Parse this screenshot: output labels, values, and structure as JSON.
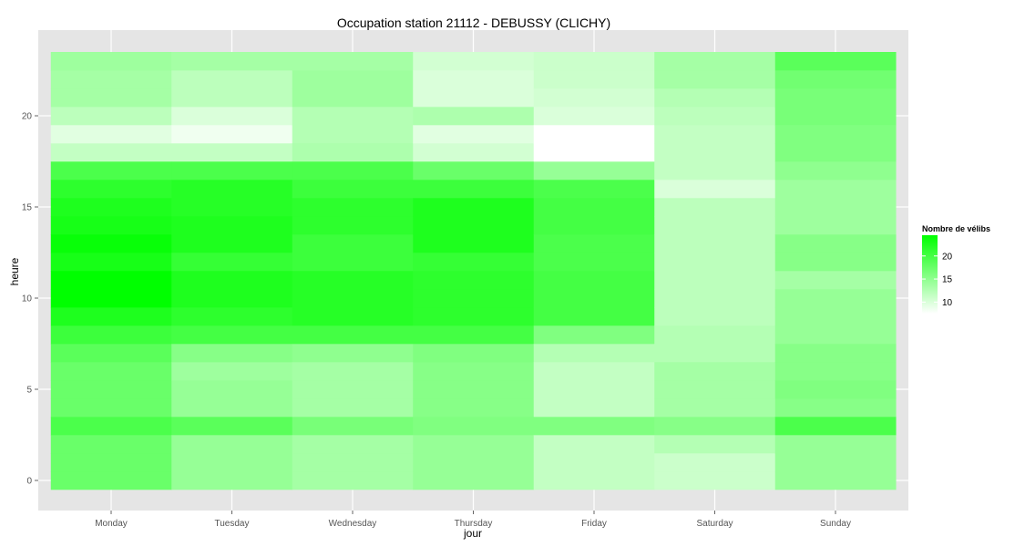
{
  "chart_data": {
    "type": "heatmap",
    "title": "Occupation station 21112 - DEBUSSY (CLICHY)",
    "xlabel": "jour",
    "ylabel": "heure",
    "x_categories": [
      "Monday",
      "Tuesday",
      "Wednesday",
      "Thursday",
      "Friday",
      "Saturday",
      "Sunday"
    ],
    "y_values": [
      0,
      1,
      2,
      3,
      4,
      5,
      6,
      7,
      8,
      9,
      10,
      11,
      12,
      13,
      14,
      15,
      16,
      17,
      18,
      19,
      20,
      21,
      22,
      23
    ],
    "y_ticks": [
      0,
      5,
      10,
      15,
      20
    ],
    "ylim": [
      -0.5,
      23.5
    ],
    "grid": true,
    "values": {
      "Monday": [
        17.5,
        17.5,
        17.5,
        19.5,
        17.5,
        17.5,
        17.5,
        18.5,
        20.5,
        22.5,
        24.5,
        24.5,
        23.0,
        24.0,
        23.0,
        22.5,
        21.5,
        19.5,
        11.5,
        9.5,
        12.0,
        13.5,
        13.5,
        14.0
      ],
      "Tuesday": [
        14.5,
        14.5,
        14.5,
        18.5,
        14.5,
        14.5,
        14.0,
        15.5,
        20.0,
        21.5,
        22.5,
        22.5,
        21.0,
        22.5,
        22.5,
        22.0,
        22.0,
        19.5,
        11.5,
        8.5,
        10.0,
        12.0,
        12.0,
        13.5
      ],
      "Wednesday": [
        13.5,
        13.5,
        13.5,
        16.5,
        13.5,
        13.5,
        13.5,
        15.0,
        20.0,
        22.0,
        22.0,
        22.0,
        20.5,
        20.5,
        21.5,
        21.5,
        20.5,
        19.5,
        13.0,
        12.5,
        12.5,
        14.0,
        14.0,
        13.5
      ],
      "Thursday": [
        14.5,
        14.5,
        14.5,
        16.0,
        15.5,
        15.5,
        15.5,
        16.0,
        20.0,
        21.5,
        21.5,
        21.5,
        21.0,
        22.5,
        22.5,
        22.5,
        20.5,
        17.5,
        10.5,
        9.5,
        13.0,
        10.0,
        10.0,
        10.5
      ],
      "Friday": [
        11.5,
        11.5,
        11.5,
        16.0,
        11.5,
        11.5,
        11.5,
        12.5,
        16.0,
        20.0,
        20.0,
        20.0,
        19.5,
        19.5,
        20.0,
        20.0,
        19.5,
        14.5,
        7.5,
        7.5,
        10.0,
        10.5,
        11.0,
        11.0
      ],
      "Saturday": [
        11.0,
        11.0,
        12.5,
        15.5,
        13.5,
        13.5,
        13.5,
        12.5,
        12.5,
        12.0,
        12.0,
        12.0,
        12.0,
        12.0,
        12.0,
        12.0,
        10.0,
        11.5,
        11.5,
        11.5,
        12.0,
        12.5,
        13.5,
        13.5
      ],
      "Sunday": [
        14.5,
        14.5,
        14.5,
        19.5,
        15.5,
        16.0,
        15.5,
        15.5,
        14.5,
        14.5,
        14.5,
        13.5,
        15.5,
        15.5,
        14.0,
        14.0,
        14.0,
        15.0,
        16.0,
        16.0,
        16.5,
        16.5,
        17.0,
        18.5
      ]
    },
    "legend": {
      "title": "Nombre de vélibs",
      "ticks": [
        10,
        15,
        20
      ],
      "min": 7.5,
      "max": 24.5,
      "low_color": "#ffffff",
      "high_color": "#00ff00",
      "placement": "right"
    },
    "panel_color": "#e5e5e5"
  }
}
